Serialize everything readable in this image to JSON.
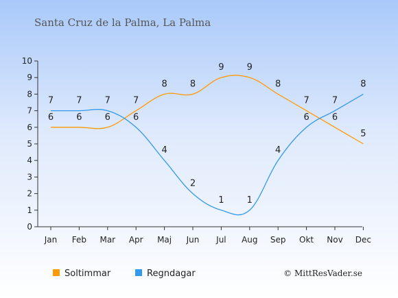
{
  "chart_data": {
    "type": "line",
    "title": "Santa Cruz de la Palma, La Palma",
    "categories": [
      "Jan",
      "Feb",
      "Mar",
      "Apr",
      "Maj",
      "Jun",
      "Jul",
      "Aug",
      "Sep",
      "Okt",
      "Nov",
      "Dec"
    ],
    "ylim": [
      0,
      10
    ],
    "yticks": [
      "0",
      "1",
      "2",
      "3",
      "4",
      "5",
      "6",
      "7",
      "8",
      "9",
      "10"
    ],
    "series": [
      {
        "name": "Soltimmar",
        "color": "#ff9900",
        "values": [
          6,
          6,
          6,
          7,
          8,
          8,
          9,
          9,
          8,
          7,
          6,
          5
        ],
        "labels": [
          "6",
          "6",
          "6",
          "7",
          "8",
          "8",
          "9",
          "9",
          "8",
          "7",
          "6",
          "5"
        ]
      },
      {
        "name": "Regndagar",
        "color": "#3399ee",
        "values": [
          7,
          7,
          7,
          6,
          4,
          2,
          1,
          1,
          4,
          6,
          7,
          8
        ],
        "labels": [
          "7",
          "7",
          "7",
          "6",
          "4",
          "2",
          "1",
          "1",
          "4",
          "6",
          "7",
          "8"
        ]
      }
    ],
    "legend_position": "bottom-left",
    "grid": false
  },
  "credit": "© MittResVader.se"
}
